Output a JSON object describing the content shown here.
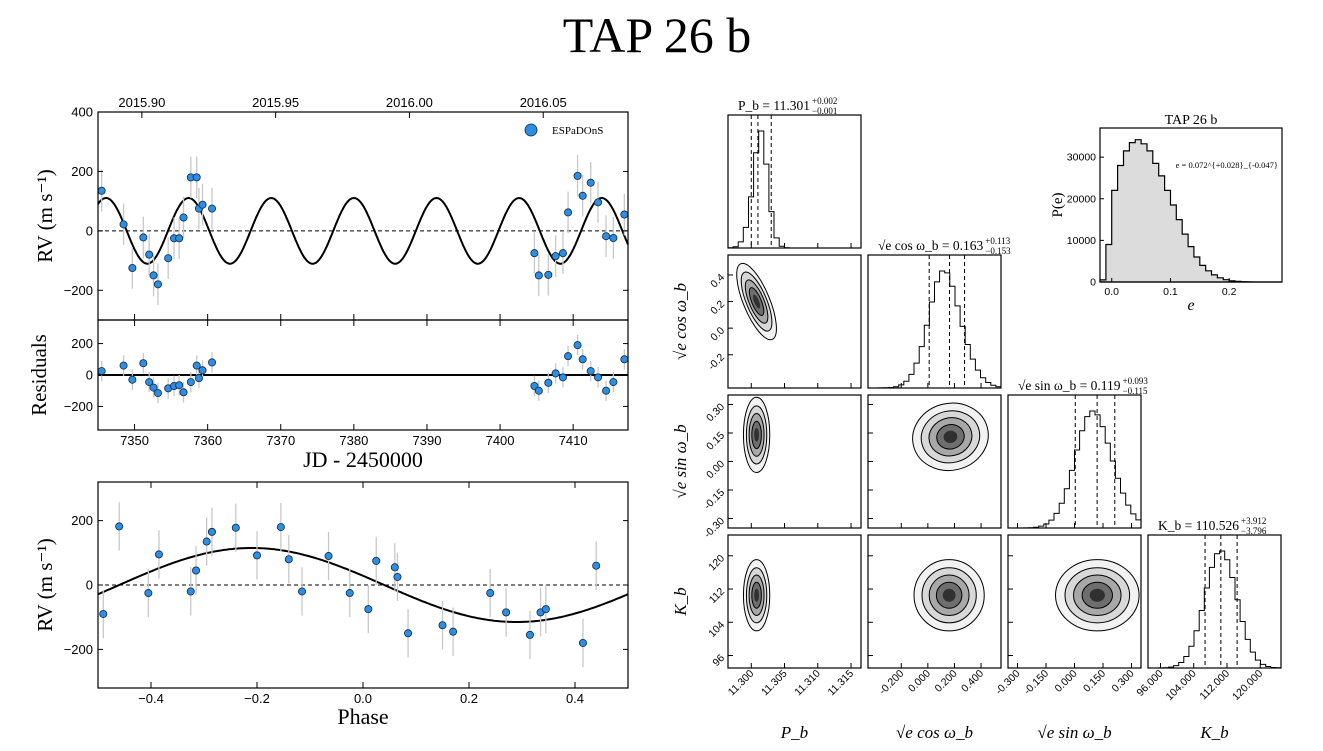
{
  "title": "TAP 26 b",
  "chart_data": [
    {
      "type": "scatter",
      "name": "rv_time_series",
      "ylabel": "RV (m s⁻¹)",
      "xlim": [
        7345,
        7417.5
      ],
      "ylim": [
        -300,
        400
      ],
      "yticks": [
        -200,
        0,
        200,
        400
      ],
      "top_axis_ticks": [
        "2015.90",
        "2015.95",
        "2016.00",
        "2016.05"
      ],
      "top_axis_jd": [
        7351,
        7369.3,
        7387.6,
        7405.9
      ],
      "legend": "ESPaDOnS",
      "model": {
        "period": 11.301,
        "amplitude": 110.526,
        "peak_jd": 7346.1
      },
      "points": [
        {
          "x": 7345.5,
          "y": 135
        },
        {
          "x": 7348.5,
          "y": 22
        },
        {
          "x": 7349.7,
          "y": -125
        },
        {
          "x": 7351.2,
          "y": -22
        },
        {
          "x": 7352.0,
          "y": -80
        },
        {
          "x": 7352.6,
          "y": -150
        },
        {
          "x": 7353.2,
          "y": -180
        },
        {
          "x": 7354.6,
          "y": -92
        },
        {
          "x": 7355.4,
          "y": -25
        },
        {
          "x": 7356.1,
          "y": -25
        },
        {
          "x": 7356.7,
          "y": 45
        },
        {
          "x": 7357.7,
          "y": 180
        },
        {
          "x": 7358.5,
          "y": 180
        },
        {
          "x": 7358.8,
          "y": 75
        },
        {
          "x": 7359.3,
          "y": 88
        },
        {
          "x": 7360.6,
          "y": 75
        },
        {
          "x": 7404.7,
          "y": -75
        },
        {
          "x": 7405.3,
          "y": -150
        },
        {
          "x": 7406.6,
          "y": -148
        },
        {
          "x": 7407.6,
          "y": -85
        },
        {
          "x": 7408.6,
          "y": -75
        },
        {
          "x": 7409.3,
          "y": 62
        },
        {
          "x": 7410.6,
          "y": 185
        },
        {
          "x": 7411.3,
          "y": 118
        },
        {
          "x": 7412.4,
          "y": 162
        },
        {
          "x": 7413.4,
          "y": 96
        },
        {
          "x": 7414.5,
          "y": -18
        },
        {
          "x": 7415.5,
          "y": -24
        },
        {
          "x": 7417.0,
          "y": 55
        }
      ]
    },
    {
      "type": "scatter",
      "name": "residuals",
      "ylabel": "Residuals",
      "xlabel": "JD - 2450000",
      "xlim": [
        7345,
        7417.5
      ],
      "ylim": [
        -350,
        350
      ],
      "yticks": [
        -200,
        0,
        200
      ],
      "xticks": [
        7350,
        7360,
        7370,
        7380,
        7390,
        7400,
        7410
      ],
      "points": [
        {
          "x": 7345.5,
          "y": 25
        },
        {
          "x": 7348.5,
          "y": 60
        },
        {
          "x": 7349.7,
          "y": -30
        },
        {
          "x": 7351.2,
          "y": 75
        },
        {
          "x": 7352.0,
          "y": -45
        },
        {
          "x": 7352.6,
          "y": -80
        },
        {
          "x": 7353.2,
          "y": -115
        },
        {
          "x": 7354.6,
          "y": -85
        },
        {
          "x": 7355.4,
          "y": -70
        },
        {
          "x": 7356.1,
          "y": -65
        },
        {
          "x": 7356.7,
          "y": -110
        },
        {
          "x": 7357.7,
          "y": -45
        },
        {
          "x": 7358.5,
          "y": 60
        },
        {
          "x": 7358.8,
          "y": -20
        },
        {
          "x": 7359.3,
          "y": 30
        },
        {
          "x": 7360.6,
          "y": 80
        },
        {
          "x": 7404.7,
          "y": -70
        },
        {
          "x": 7405.3,
          "y": -100
        },
        {
          "x": 7406.6,
          "y": -50
        },
        {
          "x": 7407.6,
          "y": 10
        },
        {
          "x": 7408.6,
          "y": -15
        },
        {
          "x": 7409.3,
          "y": 120
        },
        {
          "x": 7410.6,
          "y": 190
        },
        {
          "x": 7411.3,
          "y": 100
        },
        {
          "x": 7412.4,
          "y": 25
        },
        {
          "x": 7413.4,
          "y": -15
        },
        {
          "x": 7414.5,
          "y": -100
        },
        {
          "x": 7415.5,
          "y": -45
        },
        {
          "x": 7417.0,
          "y": 100
        }
      ]
    },
    {
      "type": "scatter",
      "name": "rv_phased",
      "ylabel": "RV (m s⁻¹)",
      "xlabel": "Phase",
      "xlim": [
        -0.5,
        0.5
      ],
      "ylim": [
        -320,
        320
      ],
      "yticks": [
        -200,
        0,
        200
      ],
      "xticks": [
        -0.4,
        -0.2,
        0.0,
        0.2,
        0.4
      ],
      "model_amplitude": 115,
      "points": [
        {
          "x": -0.49,
          "y": -90
        },
        {
          "x": -0.46,
          "y": 182
        },
        {
          "x": -0.405,
          "y": -25
        },
        {
          "x": -0.385,
          "y": 95
        },
        {
          "x": -0.325,
          "y": -20
        },
        {
          "x": -0.315,
          "y": 45
        },
        {
          "x": -0.295,
          "y": 135
        },
        {
          "x": -0.285,
          "y": 165
        },
        {
          "x": -0.24,
          "y": 178
        },
        {
          "x": -0.2,
          "y": 92
        },
        {
          "x": -0.155,
          "y": 180
        },
        {
          "x": -0.14,
          "y": 80
        },
        {
          "x": -0.115,
          "y": -20
        },
        {
          "x": -0.065,
          "y": 90
        },
        {
          "x": -0.025,
          "y": -25
        },
        {
          "x": 0.01,
          "y": -75
        },
        {
          "x": 0.025,
          "y": 75
        },
        {
          "x": 0.06,
          "y": 55
        },
        {
          "x": 0.065,
          "y": 25
        },
        {
          "x": 0.085,
          "y": -150
        },
        {
          "x": 0.15,
          "y": -125
        },
        {
          "x": 0.17,
          "y": -145
        },
        {
          "x": 0.24,
          "y": -25
        },
        {
          "x": 0.27,
          "y": -85
        },
        {
          "x": 0.315,
          "y": -155
        },
        {
          "x": 0.335,
          "y": -85
        },
        {
          "x": 0.345,
          "y": -75
        },
        {
          "x": 0.415,
          "y": -180
        },
        {
          "x": 0.44,
          "y": 60
        }
      ]
    },
    {
      "type": "histogram",
      "name": "eccentricity",
      "title": "TAP 26 b",
      "xlabel": "e",
      "ylabel": "P(e)",
      "annotation": "e = 0.072^{+0.028}_{-0.047}",
      "xlim": [
        -0.02,
        0.29
      ],
      "ylim": [
        0,
        37000
      ],
      "xticks": [
        0.0,
        0.1,
        0.2
      ],
      "yticks": [
        0,
        10000,
        20000,
        30000
      ],
      "bin_width": 0.01,
      "bin_starts": [
        -0.02,
        -0.01,
        0.0,
        0.01,
        0.02,
        0.03,
        0.04,
        0.05,
        0.06,
        0.07,
        0.08,
        0.09,
        0.1,
        0.11,
        0.12,
        0.13,
        0.14,
        0.15,
        0.16,
        0.17,
        0.18,
        0.19,
        0.2,
        0.21,
        0.22,
        0.23,
        0.24,
        0.25,
        0.26,
        0.27,
        0.28
      ],
      "counts": [
        500,
        9000,
        22000,
        28000,
        31500,
        33500,
        34200,
        33200,
        31500,
        28500,
        25500,
        22000,
        18500,
        15000,
        11500,
        8500,
        6000,
        4000,
        2700,
        1700,
        1000,
        550,
        300,
        150,
        70,
        30,
        12,
        0,
        0,
        0,
        0
      ]
    },
    {
      "type": "corner",
      "name": "posterior_corner",
      "parameters": [
        {
          "label": "P_b",
          "symbol": "Pb",
          "summary_main": "P_b = 11.301",
          "summary_up": "+0.002",
          "summary_down": "−0.001",
          "lim": [
            11.2965,
            11.3165
          ],
          "ticks": [
            11.3,
            11.305,
            11.31,
            11.315
          ],
          "tick_labels": [
            "11.300",
            "11.305",
            "11.310",
            "11.315"
          ],
          "left_ticks": [],
          "left_tick_labels": [],
          "median": 11.301,
          "lo": 11.3,
          "hi": 11.303,
          "sigma": 0.0012,
          "skew": 0.9
        },
        {
          "label": "√e cos ω_b",
          "symbol": "secos",
          "summary_main": "√e cos ω_b = 0.163",
          "summary_up": "+0.113",
          "summary_down": "−0.153",
          "lim": [
            -0.45,
            0.55
          ],
          "ticks": [
            -0.2,
            0.0,
            0.2,
            0.4
          ],
          "tick_labels": [
            "-0.200",
            "0.000",
            "0.200",
            "0.400"
          ],
          "left_ticks": [
            -0.2,
            0.0,
            0.2,
            0.4
          ],
          "left_tick_labels": [
            "-0.2",
            "0.0",
            "0.2",
            "0.4"
          ],
          "median": 0.163,
          "lo": 0.01,
          "hi": 0.276,
          "sigma": 0.13,
          "skew": -0.8
        },
        {
          "label": "√e sin ω_b",
          "symbol": "sesin",
          "summary_main": "√e sin ω_b = 0.119",
          "summary_up": "+0.093",
          "summary_down": "−0.115",
          "lim": [
            -0.35,
            0.35
          ],
          "ticks": [
            -0.3,
            -0.15,
            0.0,
            0.15,
            0.3
          ],
          "tick_labels": [
            "-0.300",
            "-0.150",
            "0.000",
            "0.150",
            "0.300"
          ],
          "left_ticks": [
            -0.3,
            -0.15,
            0.0,
            0.15,
            0.3
          ],
          "left_tick_labels": [
            "-0.30",
            "-0.15",
            "0.00",
            "0.15",
            "0.30"
          ],
          "median": 0.119,
          "lo": 0.004,
          "hi": 0.212,
          "sigma": 0.1,
          "skew": -0.5
        },
        {
          "label": "K_b",
          "symbol": "Kb",
          "summary_main": "K_b = 110.526",
          "summary_up": "+3.912",
          "summary_down": "−3.796",
          "lim": [
            93,
            125
          ],
          "ticks": [
            96,
            104,
            112,
            120
          ],
          "tick_labels": [
            "96.000",
            "104.000",
            "112.000",
            "120.000"
          ],
          "left_ticks": [
            96,
            104,
            112,
            120
          ],
          "left_tick_labels": [
            "96",
            "104",
            "112",
            "120"
          ],
          "median": 110.526,
          "lo": 106.73,
          "hi": 114.44,
          "sigma": 3.85,
          "skew": 0
        }
      ],
      "pair_centers": [
        {
          "row": 1,
          "col": 0,
          "cx": 11.3008,
          "cy": 0.2,
          "sx": 0.0009,
          "sy": 0.14,
          "rho": -0.5
        },
        {
          "row": 2,
          "col": 0,
          "cx": 11.3008,
          "cy": 0.14,
          "sx": 0.0009,
          "sy": 0.09,
          "rho": 0.0
        },
        {
          "row": 2,
          "col": 1,
          "cx": 0.17,
          "cy": 0.13,
          "sx": 0.13,
          "sy": 0.08,
          "rho": -0.3
        },
        {
          "row": 3,
          "col": 0,
          "cx": 11.3008,
          "cy": 110.5,
          "sx": 0.0009,
          "sy": 3.9,
          "rho": 0.0
        },
        {
          "row": 3,
          "col": 1,
          "cx": 0.16,
          "cy": 110.5,
          "sx": 0.12,
          "sy": 3.9,
          "rho": 0.0
        },
        {
          "row": 3,
          "col": 2,
          "cx": 0.12,
          "cy": 110.5,
          "sx": 0.1,
          "sy": 3.9,
          "rho": 0.0
        }
      ]
    }
  ]
}
